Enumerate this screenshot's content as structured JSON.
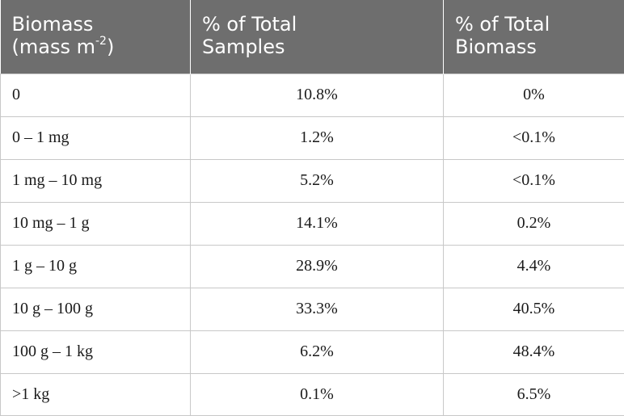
{
  "table": {
    "headers": {
      "col1_line1": "Biomass",
      "col1_line2_pre": "(mass m",
      "col1_sup": "-2",
      "col1_line2_post": ")",
      "col2_line1": "% of Total",
      "col2_line2": "Samples",
      "col3_line1": "% of Total",
      "col3_line2": "Biomass"
    },
    "rows": [
      {
        "range": "0",
        "samples": "10.8%",
        "biomass": "0%"
      },
      {
        "range": "0 – 1 mg",
        "samples": "1.2%",
        "biomass": "<0.1%"
      },
      {
        "range": "1 mg – 10 mg",
        "samples": "5.2%",
        "biomass": "<0.1%"
      },
      {
        "range": "10 mg – 1 g",
        "samples": "14.1%",
        "biomass": "0.2%"
      },
      {
        "range": "1 g – 10 g",
        "samples": "28.9%",
        "biomass": "4.4%"
      },
      {
        "range": "10 g – 100 g",
        "samples": "33.3%",
        "biomass": "40.5%"
      },
      {
        "range": "100 g – 1 kg",
        "samples": "6.2%",
        "biomass": "48.4%"
      },
      {
        "range": ">1 kg",
        "samples": "0.1%",
        "biomass": "6.5%"
      }
    ]
  },
  "colors": {
    "header_bg": "#6e6e6e",
    "header_text": "#ffffff",
    "border": "#c8c8c8"
  }
}
